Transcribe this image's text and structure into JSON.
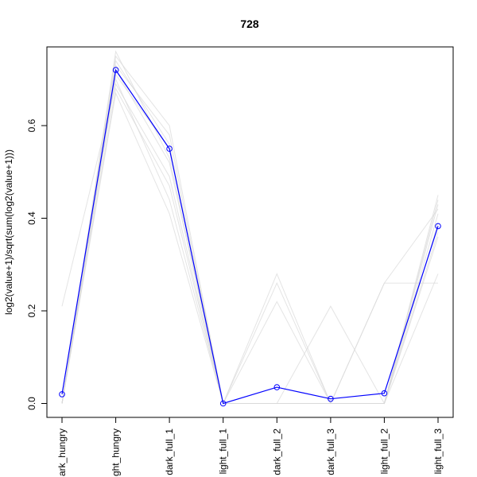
{
  "chart_data": {
    "type": "line",
    "title": "728",
    "xlabel": "",
    "ylabel": "log2(value+1)/sqrt(sum(log2(value+1)))",
    "categories": [
      "dark_hungry",
      "light_hungry",
      "dark_full_1",
      "light_full_1",
      "dark_full_2",
      "dark_full_3",
      "light_full_2",
      "light_full_3"
    ],
    "tick_labels": [
      "ark_hungry",
      "ght_hungry",
      "dark_full_1",
      "light_full_1",
      "dark_full_2",
      "dark_full_3",
      "light_full_2",
      "light_full_3"
    ],
    "yticks": [
      0.0,
      0.2,
      0.4,
      0.6
    ],
    "ytick_labels": [
      "0.0",
      "0.2",
      "0.4",
      "0.6"
    ],
    "ylim": [
      -0.03,
      0.77
    ],
    "grid": false,
    "legend": "none",
    "highlight_color": "#0000ff",
    "background_color": "#d9d9d9",
    "highlight_series": {
      "values": [
        0.02,
        0.72,
        0.55,
        0.0,
        0.035,
        0.01,
        0.022,
        0.383
      ]
    },
    "background_series": [
      {
        "values": [
          0.21,
          0.69,
          0.49,
          0.0,
          0.0,
          0.0,
          0.0,
          0.44
        ]
      },
      {
        "values": [
          0.0,
          0.75,
          0.6,
          0.0,
          0.28,
          0.0,
          0.0,
          0.43
        ]
      },
      {
        "values": [
          0.0,
          0.76,
          0.53,
          0.0,
          0.22,
          0.0,
          0.26,
          0.26
        ]
      },
      {
        "values": [
          0.0,
          0.73,
          0.58,
          0.0,
          0.0,
          0.21,
          0.0,
          0.28
        ]
      },
      {
        "values": [
          0.0,
          0.7,
          0.44,
          0.0,
          0.26,
          0.0,
          0.0,
          0.36
        ]
      },
      {
        "values": [
          0.0,
          0.67,
          0.41,
          0.0,
          0.0,
          0.0,
          0.0,
          0.45
        ]
      },
      {
        "values": [
          0.0,
          0.74,
          0.56,
          0.0,
          0.0,
          0.0,
          0.0,
          0.39
        ]
      },
      {
        "values": [
          0.0,
          0.72,
          0.52,
          0.0,
          0.0,
          0.0,
          0.0,
          0.41
        ]
      },
      {
        "values": [
          0.0,
          0.68,
          0.47,
          0.0,
          0.0,
          0.0,
          0.26,
          0.42
        ]
      },
      {
        "values": [
          0.0,
          0.71,
          0.55,
          0.0,
          0.0,
          0.0,
          0.0,
          0.37
        ]
      }
    ]
  }
}
